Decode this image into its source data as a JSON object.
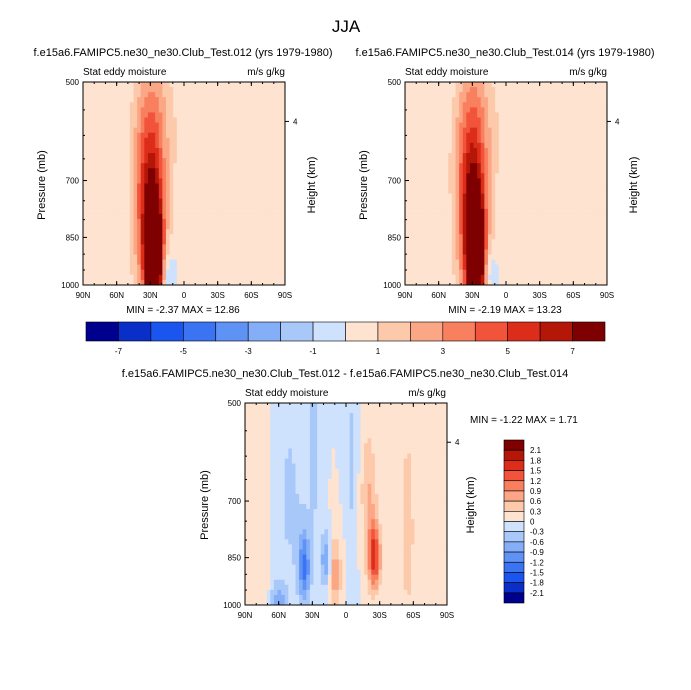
{
  "title": "JJA",
  "chart_data": [
    {
      "type": "heatmap",
      "title": "f.e15a6.FAMIPC5.ne30_ne30.Club_Test.012 (yrs 1979-1980)",
      "left_label": "Stat eddy moisture",
      "right_label": "m/s g/kg",
      "ylabel": "Pressure (mb)",
      "ylabel_right": "Height (km)",
      "x_ticks": [
        "90N",
        "60N",
        "30N",
        "0",
        "30S",
        "60S",
        "90S"
      ],
      "y_ticks": [
        "500",
        "700",
        "850",
        "1000"
      ],
      "y_ticks_right": [
        "4"
      ],
      "x_range": [
        90,
        -90
      ],
      "y_range": [
        1000,
        500
      ],
      "stats": "MIN = -2.37  MAX = 12.86",
      "min": -2.37,
      "max": 12.86,
      "features": [
        {
          "lat": 27,
          "p": 920,
          "value": 12.8,
          "sx": 5,
          "sp": 110
        },
        {
          "lat": 30,
          "p": 820,
          "value": 5.5,
          "sx": 9,
          "sp": 170
        },
        {
          "lat": 32,
          "p": 650,
          "value": 2.2,
          "sx": 11,
          "sp": 130
        },
        {
          "lat": 20,
          "p": 560,
          "value": 0.9,
          "sx": 14,
          "sp": 90
        },
        {
          "lat": -5,
          "p": 850,
          "value": 0.8,
          "sx": 14,
          "sp": 170
        },
        {
          "lat": 15,
          "p": 960,
          "value": -1.8,
          "sx": 6,
          "sp": 60
        },
        {
          "lat": 60,
          "p": 960,
          "value": 0.6,
          "sx": 10,
          "sp": 80
        }
      ]
    },
    {
      "type": "heatmap",
      "title": "f.e15a6.FAMIPC5.ne30_ne30.Club_Test.014 (yrs 1979-1980)",
      "left_label": "Stat eddy moisture",
      "right_label": "m/s g/kg",
      "ylabel": "Pressure (mb)",
      "ylabel_right": "Height (km)",
      "x_ticks": [
        "90N",
        "60N",
        "30N",
        "0",
        "30S",
        "60S",
        "90S"
      ],
      "y_ticks": [
        "500",
        "700",
        "850",
        "1000"
      ],
      "y_ticks_right": [
        "4"
      ],
      "x_range": [
        90,
        -90
      ],
      "y_range": [
        1000,
        500
      ],
      "stats": "MIN = -2.19  MAX = 13.23",
      "min": -2.19,
      "max": 13.23,
      "features": [
        {
          "lat": 27,
          "p": 920,
          "value": 13.2,
          "sx": 5,
          "sp": 110
        },
        {
          "lat": 30,
          "p": 820,
          "value": 5.8,
          "sx": 9,
          "sp": 170
        },
        {
          "lat": 32,
          "p": 650,
          "value": 2.4,
          "sx": 11,
          "sp": 130
        },
        {
          "lat": 20,
          "p": 560,
          "value": 0.9,
          "sx": 14,
          "sp": 90
        },
        {
          "lat": -5,
          "p": 850,
          "value": 0.8,
          "sx": 14,
          "sp": 170
        },
        {
          "lat": 15,
          "p": 960,
          "value": -1.7,
          "sx": 6,
          "sp": 60
        },
        {
          "lat": 60,
          "p": 960,
          "value": 0.6,
          "sx": 10,
          "sp": 80
        }
      ]
    },
    {
      "type": "heatmap",
      "title": "f.e15a6.FAMIPC5.ne30_ne30.Club_Test.012 - f.e15a6.FAMIPC5.ne30_ne30.Club_Test.014",
      "left_label": "Stat eddy moisture",
      "right_label": "m/s g/kg",
      "ylabel": "Pressure (mb)",
      "ylabel_right": "Height (km)",
      "x_ticks": [
        "90N",
        "60N",
        "30N",
        "0",
        "30S",
        "60S",
        "90S"
      ],
      "y_ticks": [
        "500",
        "700",
        "850",
        "1000"
      ],
      "y_ticks_right": [
        "4"
      ],
      "x_range": [
        90,
        -90
      ],
      "y_range": [
        1000,
        500
      ],
      "stats": "MIN = -1.22  MAX =  1.71",
      "min": -1.22,
      "max": 1.71,
      "features": [
        {
          "lat": 37,
          "p": 880,
          "value": -1.2,
          "sx": 4,
          "sp": 80
        },
        {
          "lat": 18,
          "p": 860,
          "value": -1.0,
          "sx": 3,
          "sp": 60
        },
        {
          "lat": -25,
          "p": 850,
          "value": 1.7,
          "sx": 4,
          "sp": 70
        },
        {
          "lat": -20,
          "p": 680,
          "value": 0.6,
          "sx": 5,
          "sp": 100
        },
        {
          "lat": 10,
          "p": 900,
          "value": 0.8,
          "sx": 4,
          "sp": 80
        },
        {
          "lat": 50,
          "p": 700,
          "value": -0.35,
          "sx": 10,
          "sp": 200
        },
        {
          "lat": -55,
          "p": 780,
          "value": 0.4,
          "sx": 6,
          "sp": 250
        },
        {
          "lat": 75,
          "p": 800,
          "value": 0.3,
          "sx": 5,
          "sp": 200
        },
        {
          "lat": -5,
          "p": 620,
          "value": -0.4,
          "sx": 4,
          "sp": 140
        },
        {
          "lat": 28,
          "p": 600,
          "value": -0.45,
          "sx": 4,
          "sp": 120
        },
        {
          "lat": 60,
          "p": 980,
          "value": -0.7,
          "sx": 5,
          "sp": 40
        }
      ]
    }
  ],
  "colorbar_top": {
    "labels": [
      "-7",
      "-5",
      "-3",
      "-1",
      "1",
      "3",
      "5",
      "7"
    ],
    "levels": [
      -8,
      -7,
      -6,
      -5,
      -4,
      -3,
      -2,
      -1,
      0,
      1,
      2,
      3,
      4,
      5,
      6,
      7,
      8
    ],
    "colors": [
      "#00008f",
      "#0a2ec8",
      "#1a55f0",
      "#3b74f2",
      "#5f92f5",
      "#84aef7",
      "#a9c8fa",
      "#cfe2fd",
      "#fde3d0",
      "#fcc9ab",
      "#fba685",
      "#f9805e",
      "#f1543a",
      "#dc2c1a",
      "#b41608",
      "#7f0000"
    ]
  },
  "colorbar_diff": {
    "labels": [
      "2.1",
      "1.8",
      "1.5",
      "1.2",
      "0.9",
      "0.6",
      "0.3",
      "0",
      "-0.3",
      "-0.6",
      "-0.9",
      "-1.2",
      "-1.5",
      "-1.8",
      "-2.1"
    ],
    "levels": [
      2.4,
      2.1,
      1.8,
      1.5,
      1.2,
      0.9,
      0.6,
      0.3,
      0,
      -0.3,
      -0.6,
      -0.9,
      -1.2,
      -1.5,
      -1.8,
      -2.1,
      -2.4
    ],
    "colors": [
      "#7f0000",
      "#b41608",
      "#dc2c1a",
      "#f1543a",
      "#f9805e",
      "#fba685",
      "#fcc9ab",
      "#fde3d0",
      "#cfe2fd",
      "#a9c8fa",
      "#84aef7",
      "#5f92f5",
      "#3b74f2",
      "#1a55f0",
      "#0a2ec8",
      "#00008f"
    ]
  }
}
